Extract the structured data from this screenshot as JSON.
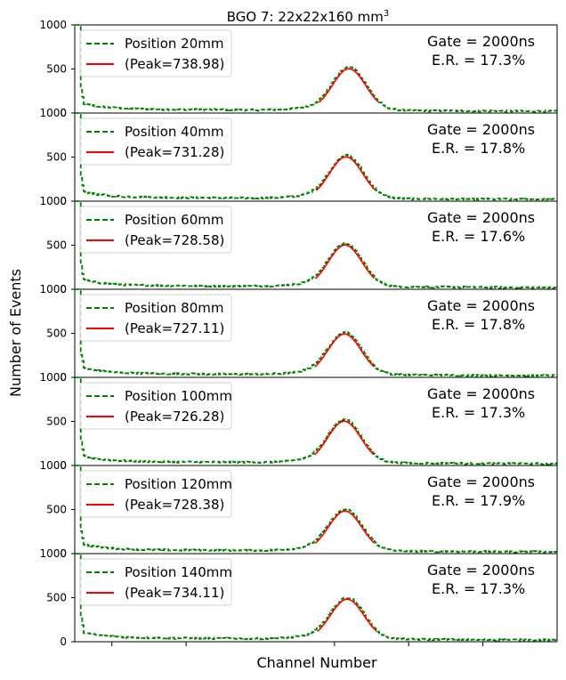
{
  "title_main": "BGO 7: 22x22x160 mm",
  "title_sup": "3",
  "xlabel": "Channel Number",
  "ylabel": "Number of Events",
  "colors": {
    "data": "#008000",
    "fit": "#ff0000",
    "axis": "#000000"
  },
  "chart_data": {
    "type": "line",
    "layout": "7 vertically stacked panels, shared x axis",
    "xlim": [
      0,
      1300
    ],
    "ylim": [
      0,
      1000
    ],
    "yticks": [
      0,
      500,
      1000
    ],
    "xticks_unlabeled": [
      100,
      300,
      700,
      900,
      1100
    ],
    "grid": false,
    "legend_position": "upper left",
    "panels": [
      {
        "position_label": "Position 20mm",
        "peak_label": "(Peak=738.98)",
        "peak": 738.98,
        "gate_text": "Gate = 2000ns",
        "er_text": "E.R. = 17.3%",
        "fit_amplitude": 480
      },
      {
        "position_label": "Position 40mm",
        "peak_label": "(Peak=731.28)",
        "peak": 731.28,
        "gate_text": "Gate = 2000ns",
        "er_text": "E.R. = 17.8%",
        "fit_amplitude": 480
      },
      {
        "position_label": "Position 60mm",
        "peak_label": "(Peak=728.58)",
        "peak": 728.58,
        "gate_text": "Gate = 2000ns",
        "er_text": "E.R. = 17.6%",
        "fit_amplitude": 480
      },
      {
        "position_label": "Position 80mm",
        "peak_label": "(Peak=727.11)",
        "peak": 727.11,
        "gate_text": "Gate = 2000ns",
        "er_text": "E.R. = 17.8%",
        "fit_amplitude": 470
      },
      {
        "position_label": "Position 100mm",
        "peak_label": "(Peak=726.28)",
        "peak": 726.28,
        "gate_text": "Gate = 2000ns",
        "er_text": "E.R. = 17.3%",
        "fit_amplitude": 480
      },
      {
        "position_label": "Position 120mm",
        "peak_label": "(Peak=728.38)",
        "peak": 728.38,
        "gate_text": "Gate = 2000ns",
        "er_text": "E.R. = 17.9%",
        "fit_amplitude": 460
      },
      {
        "position_label": "Position 140mm",
        "peak_label": "(Peak=734.11)",
        "peak": 734.11,
        "gate_text": "Gate = 2000ns",
        "er_text": "E.R. = 17.3%",
        "fit_amplitude": 460
      }
    ]
  }
}
